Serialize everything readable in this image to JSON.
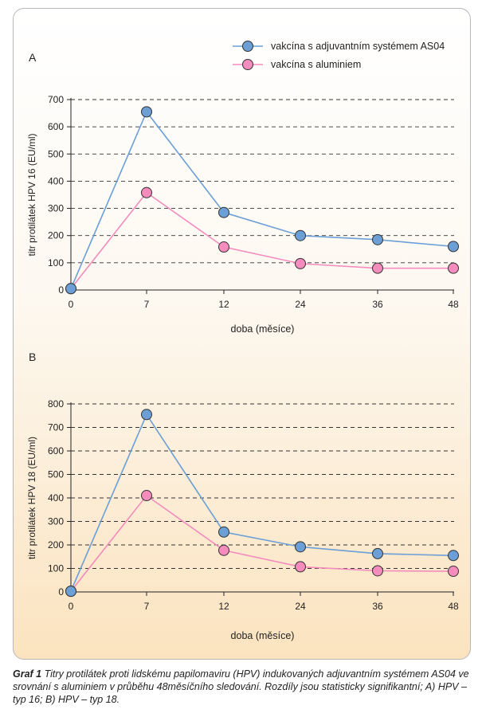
{
  "legend": {
    "series": [
      {
        "name": "vakcína s adjuvantním systémem AS04",
        "color": "#6b9fd6"
      },
      {
        "name": "vakcína s aluminiem",
        "color": "#f48cbd"
      }
    ]
  },
  "chart_data": [
    {
      "type": "line",
      "panel_label": "A",
      "xlabel": "doba (měsíce)",
      "ylabel": "titr protilátek HPV 16 (EU/ml)",
      "categories": [
        "0",
        "7",
        "12",
        "24",
        "36",
        "48"
      ],
      "ylim": [
        0,
        700
      ],
      "yticks": [
        0,
        100,
        200,
        300,
        400,
        500,
        600,
        700
      ],
      "grid": "dashed-horizontal",
      "series": [
        {
          "name": "vakcína s adjuvantním systémem AS04",
          "values": [
            5,
            655,
            285,
            200,
            185,
            160
          ]
        },
        {
          "name": "vakcína s aluminiem",
          "values": [
            5,
            358,
            158,
            97,
            80,
            80
          ]
        }
      ]
    },
    {
      "type": "line",
      "panel_label": "B",
      "xlabel": "doba (měsíce)",
      "ylabel": "titr protilátek HPV 18 (EU/ml)",
      "categories": [
        "0",
        "7",
        "12",
        "24",
        "36",
        "48"
      ],
      "ylim": [
        0,
        800
      ],
      "yticks": [
        0,
        100,
        200,
        300,
        400,
        500,
        600,
        700,
        800
      ],
      "grid": "dashed-horizontal",
      "series": [
        {
          "name": "vakcína s adjuvantním systémem AS04",
          "values": [
            3,
            755,
            255,
            192,
            163,
            155
          ]
        },
        {
          "name": "vakcína s aluminiem",
          "values": [
            3,
            410,
            177,
            107,
            90,
            88
          ]
        }
      ]
    }
  ],
  "caption": {
    "label": "Graf 1",
    "text": "Titry protilátek proti lidskému papilomaviru (HPV) indukovaných adjuvantním systémem AS04 ve srovnání s aluminiem v průběhu 48měsíčního sledování. Rozdíly jsou statisticky signifikantní; A) HPV – typ 16; B) HPV – typ 18."
  }
}
